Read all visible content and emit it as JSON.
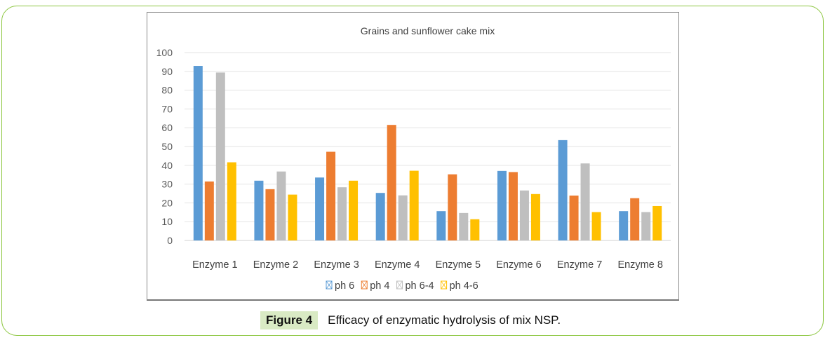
{
  "chart_data": {
    "type": "bar",
    "title": "Grains and sunflower cake mix",
    "xlabel": "",
    "ylabel": "",
    "ylim": [
      0,
      100
    ],
    "yticks": [
      "0",
      "10",
      "20",
      "30",
      "40",
      "50",
      "60",
      "70",
      "80",
      "90",
      "100"
    ],
    "grid": true,
    "legend_position": "bottom",
    "categories": [
      "Enzyme 1",
      "Enzyme 2",
      "Enzyme 3",
      "Enzyme 4",
      "Enzyme 5",
      "Enzyme 6",
      "Enzyme 7",
      "Enzyme 8"
    ],
    "series": [
      {
        "name": "ph 6",
        "color": "#5b9bd5",
        "values": [
          92.9,
          31.8,
          33.5,
          25.3,
          15.6,
          37.0,
          53.4,
          15.6
        ]
      },
      {
        "name": "ph 4",
        "color": "#ed7d31",
        "values": [
          31.4,
          27.3,
          47.2,
          61.5,
          35.2,
          36.4,
          23.9,
          22.5
        ]
      },
      {
        "name": "ph 6-4",
        "color": "#bfbfbf",
        "values": [
          89.4,
          36.7,
          28.3,
          24.0,
          14.6,
          26.6,
          41.0,
          15.1
        ]
      },
      {
        "name": "ph 4-6",
        "color": "#ffc000",
        "values": [
          41.6,
          24.4,
          31.8,
          37.1,
          11.3,
          24.7,
          15.1,
          18.3
        ]
      }
    ]
  },
  "caption": {
    "label": "Figure 4",
    "text": "Efficacy of enzymatic hydrolysis of mix NSP."
  }
}
